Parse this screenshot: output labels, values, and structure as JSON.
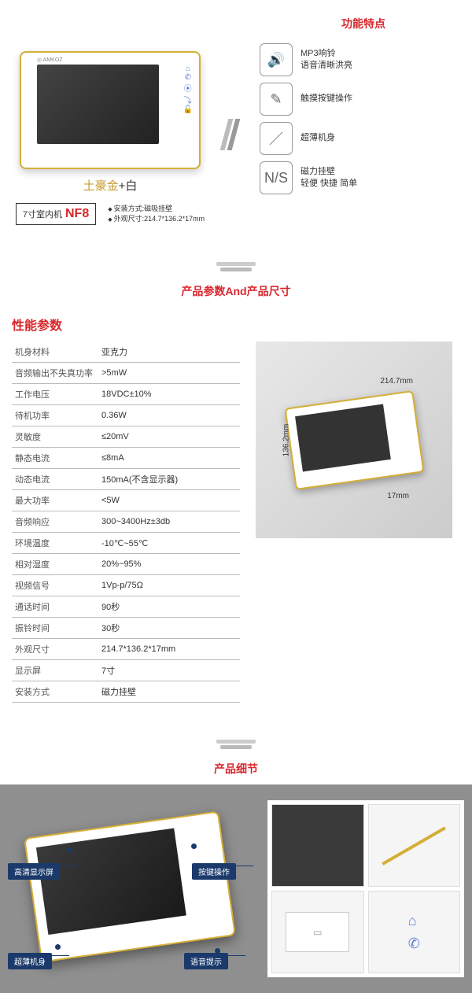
{
  "section1": {
    "title": "功能特点",
    "color_label": {
      "gold": "土豪金",
      "plus": "+",
      "white": "白"
    },
    "model": {
      "prefix": "7寸室内机",
      "code": "NF8"
    },
    "install": [
      "安装方式:磁吸挂壁",
      "外观尺寸:214.7*136.2*17mm"
    ],
    "features": [
      {
        "icon": "🔊",
        "line1": "MP3响铃",
        "line2": "语音清晰洪亮"
      },
      {
        "icon": "✎",
        "line1": "触摸按键操作",
        "line2": ""
      },
      {
        "icon": "／",
        "line1": "超薄机身",
        "line2": ""
      },
      {
        "icon": "N/S",
        "line1": "磁力挂壁",
        "line2": "轻便 快捷 简单"
      }
    ]
  },
  "section2": {
    "title": "产品参数And产品尺寸",
    "spec_title": "性能参数",
    "specs": [
      [
        "机身材料",
        "亚克力"
      ],
      [
        "音频输出不失真功率",
        ">5mW"
      ],
      [
        "工作电压",
        "18VDC±10%"
      ],
      [
        "待机功率",
        "0.36W"
      ],
      [
        "灵敏度",
        "≤20mV"
      ],
      [
        "静态电流",
        "≤8mA"
      ],
      [
        "动态电流",
        "150mA(不含显示器)"
      ],
      [
        "最大功率",
        "<5W"
      ],
      [
        "音频响应",
        "300~3400Hz±3db"
      ],
      [
        "环境温度",
        "-10℃~55℃"
      ],
      [
        "相对湿度",
        "20%~95%"
      ],
      [
        "视频信号",
        "1Vp-p/75Ω"
      ],
      [
        "通话时间",
        "90秒"
      ],
      [
        "振铃时间",
        "30秒"
      ],
      [
        "外观尺寸",
        "214.7*136.2*17mm"
      ],
      [
        "显示屏",
        "7寸"
      ],
      [
        "安装方式",
        "磁力挂壁"
      ]
    ],
    "dims": {
      "w": "214.7mm",
      "h": "136.2mm",
      "d": "17mm"
    }
  },
  "section3": {
    "title": "产品细节",
    "callouts": [
      "高清显示屏",
      "超薄机身",
      "按键操作",
      "语音提示"
    ]
  }
}
